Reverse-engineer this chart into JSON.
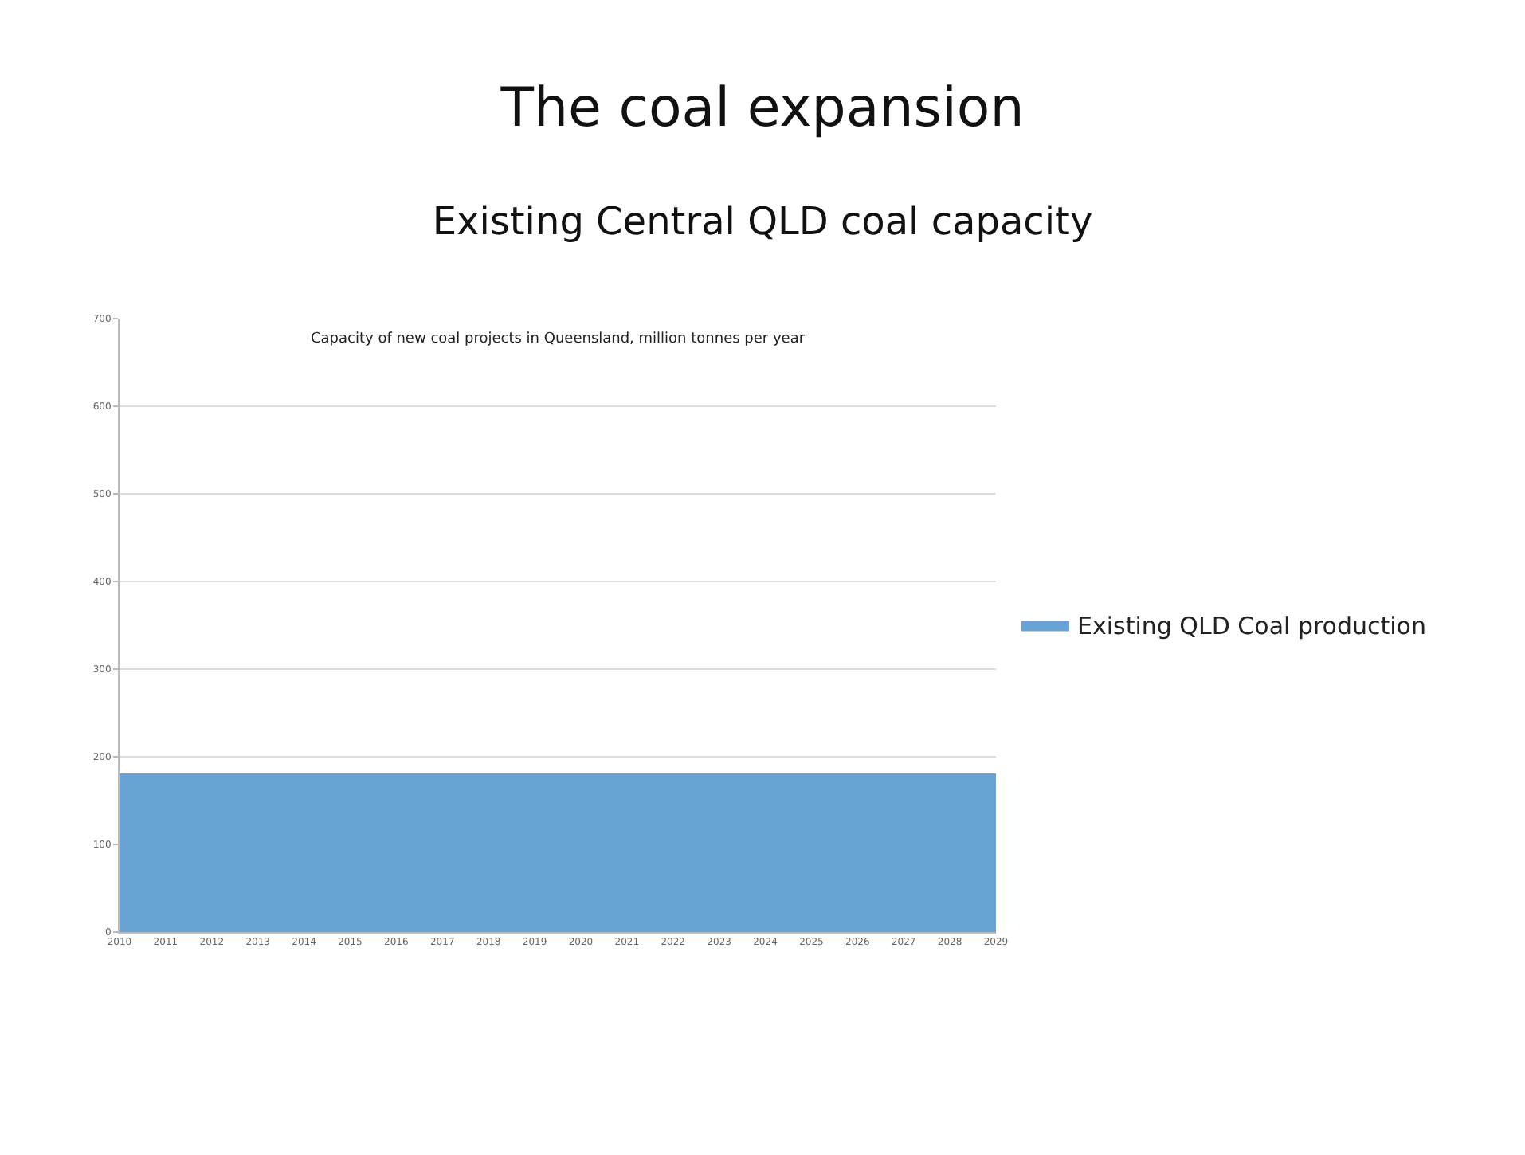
{
  "chart_data": {
    "type": "area",
    "title": "The coal expansion",
    "subtitle": "Existing Central QLD coal capacity",
    "annotations": [
      "Capacity of new coal projects in Queensland, million tonnes per year"
    ],
    "categories": [
      "2010",
      "2011",
      "2012",
      "2013",
      "2014",
      "2015",
      "2016",
      "2017",
      "2018",
      "2019",
      "2020",
      "2021",
      "2022",
      "2023",
      "2024",
      "2025",
      "2026",
      "2027",
      "2028",
      "2029"
    ],
    "series": [
      {
        "name": "Existing QLD Coal production",
        "color": "#67a3d4",
        "values": [
          180,
          180,
          180,
          180,
          180,
          180,
          180,
          180,
          180,
          180,
          180,
          180,
          180,
          180,
          180,
          180,
          180,
          180,
          180,
          180
        ]
      }
    ],
    "ylim": [
      0,
      700
    ],
    "yticks": [
      0,
      100,
      200,
      300,
      400,
      500,
      600,
      700
    ],
    "grid": "y",
    "legend": "right"
  }
}
